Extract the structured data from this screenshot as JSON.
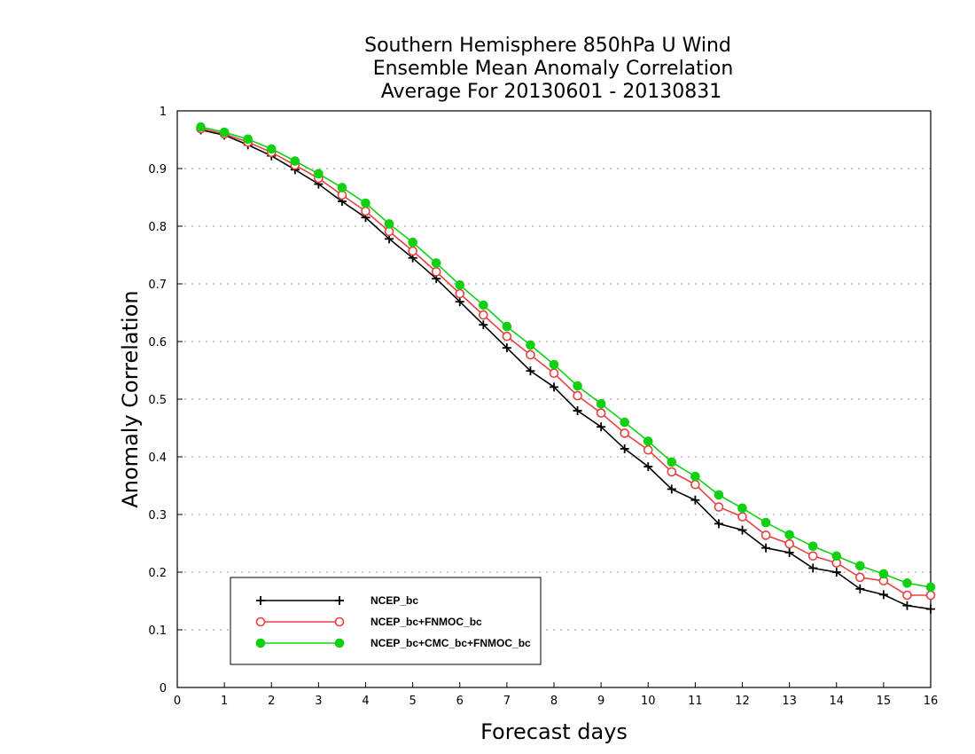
{
  "chart_data": {
    "type": "line",
    "title": [
      "Southern Hemisphere 850hPa U Wind",
      "Ensemble Mean Anomaly Correlation",
      "Average For 20130601 - 20130831"
    ],
    "xlabel": "Forecast days",
    "ylabel": "Anomaly Correlation",
    "xlim": [
      0,
      16
    ],
    "ylim": [
      0,
      1
    ],
    "xticks": [
      "0",
      "1",
      "2",
      "3",
      "4",
      "5",
      "6",
      "7",
      "8",
      "9",
      "10",
      "11",
      "12",
      "13",
      "14",
      "15",
      "16"
    ],
    "yticks": [
      "0",
      "0.1",
      "0.2",
      "0.3",
      "0.4",
      "0.5",
      "0.6",
      "0.7",
      "0.8",
      "0.9",
      "1"
    ],
    "grid": true,
    "legend_position": "bottom-left",
    "x": [
      0.5,
      1,
      1.5,
      2,
      2.5,
      3,
      3.5,
      4,
      4.5,
      5,
      5.5,
      6,
      6.5,
      7,
      7.5,
      8,
      8.5,
      9,
      9.5,
      10,
      10.5,
      11,
      11.5,
      12,
      12.5,
      13,
      13.5,
      14,
      14.5,
      15,
      15.5,
      16
    ],
    "series": [
      {
        "name": "NCEP_bc",
        "color": "#000000",
        "marker": "plus",
        "values": [
          0.967,
          0.958,
          0.941,
          0.922,
          0.898,
          0.873,
          0.843,
          0.815,
          0.778,
          0.745,
          0.709,
          0.669,
          0.629,
          0.589,
          0.549,
          0.521,
          0.48,
          0.452,
          0.414,
          0.383,
          0.344,
          0.325,
          0.284,
          0.273,
          0.242,
          0.234,
          0.207,
          0.2,
          0.171,
          0.161,
          0.142,
          0.136
        ]
      },
      {
        "name": "NCEP_bc+FNMOC_bc",
        "color": "#e84040",
        "marker": "open-circle",
        "values": [
          0.969,
          0.96,
          0.946,
          0.928,
          0.906,
          0.883,
          0.854,
          0.826,
          0.791,
          0.757,
          0.721,
          0.683,
          0.646,
          0.609,
          0.577,
          0.545,
          0.506,
          0.476,
          0.441,
          0.412,
          0.374,
          0.352,
          0.313,
          0.296,
          0.264,
          0.249,
          0.228,
          0.216,
          0.191,
          0.185,
          0.16,
          0.16
        ]
      },
      {
        "name": "NCEP_bc+CMC_bc+FNMOC_bc",
        "color": "#11d011",
        "marker": "filled-circle",
        "values": [
          0.972,
          0.963,
          0.951,
          0.934,
          0.913,
          0.891,
          0.867,
          0.84,
          0.804,
          0.772,
          0.736,
          0.698,
          0.663,
          0.626,
          0.594,
          0.56,
          0.523,
          0.492,
          0.46,
          0.427,
          0.391,
          0.366,
          0.334,
          0.311,
          0.286,
          0.265,
          0.245,
          0.228,
          0.211,
          0.197,
          0.181,
          0.174
        ]
      }
    ]
  }
}
